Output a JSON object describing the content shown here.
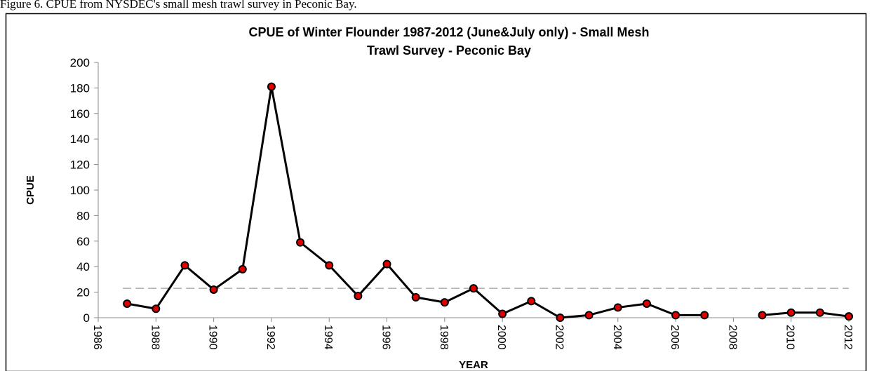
{
  "caption": "Figure 6. CPUE from NYSDEC's small mesh trawl survey in Peconic Bay.",
  "chart_data": {
    "type": "line",
    "title": [
      "CPUE of Winter Flounder 1987-2012 (June&July only) - Small Mesh",
      "Trawl Survey - Peconic Bay"
    ],
    "x_label": "YEAR",
    "y_label": "CPUE",
    "x": [
      1987,
      1988,
      1989,
      1990,
      1991,
      1992,
      1993,
      1994,
      1995,
      1996,
      1997,
      1998,
      1999,
      2000,
      2001,
      2002,
      2003,
      2004,
      2005,
      2006,
      2007,
      2008,
      2009,
      2010,
      2011,
      2012
    ],
    "series": [
      {
        "name": "CPUE",
        "color": "#000000",
        "marker_color": "#e00000",
        "values": [
          11,
          7,
          41,
          22,
          38,
          181,
          59,
          41,
          17,
          42,
          16,
          12,
          23,
          3,
          13,
          0,
          2,
          8,
          11,
          2,
          2,
          null,
          2,
          4,
          4,
          1
        ]
      }
    ],
    "reference_line": 23,
    "reference_color": "#aaaaaa",
    "xlim": [
      1986,
      2012
    ],
    "xticks": [
      1986,
      1988,
      1990,
      1992,
      1994,
      1996,
      1998,
      2000,
      2002,
      2004,
      2006,
      2008,
      2010,
      2012
    ],
    "ylim": [
      0,
      200
    ],
    "yticks": [
      0,
      20,
      40,
      60,
      80,
      100,
      120,
      140,
      160,
      180,
      200
    ],
    "grid": false
  }
}
